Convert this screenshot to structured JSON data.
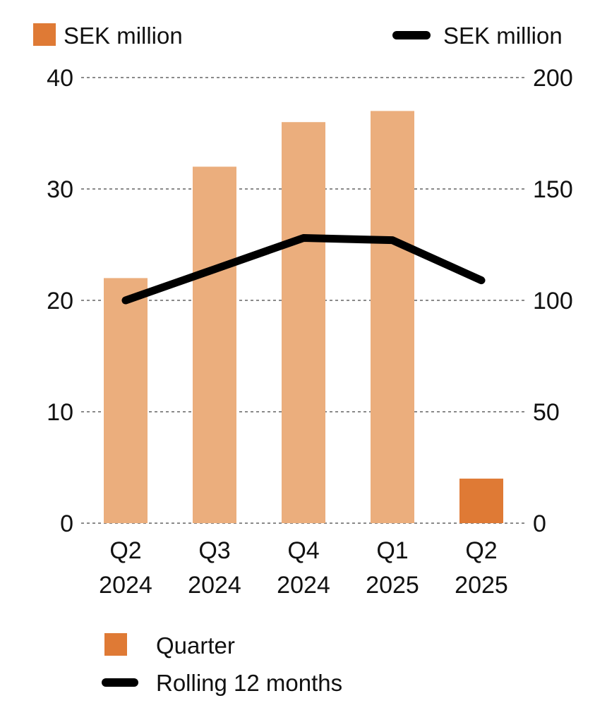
{
  "chart_data": {
    "type": "bar",
    "categories": [
      [
        "Q2",
        "2024"
      ],
      [
        "Q3",
        "2024"
      ],
      [
        "Q4",
        "2024"
      ],
      [
        "Q1",
        "2025"
      ],
      [
        "Q2",
        "2025"
      ]
    ],
    "series": [
      {
        "name": "Quarter",
        "type": "bar",
        "axis": "left",
        "values": [
          22,
          32,
          36,
          37,
          4
        ],
        "colors": [
          "#ebae7d",
          "#ebae7d",
          "#ebae7d",
          "#ebae7d",
          "#df7a35"
        ]
      },
      {
        "name": "Rolling 12 months",
        "type": "line",
        "axis": "right",
        "values": [
          100,
          114,
          128,
          127,
          109
        ],
        "color": "#000000"
      }
    ],
    "y_left": {
      "label": "SEK million",
      "min": 0,
      "max": 40,
      "ticks": [
        "0",
        "10",
        "20",
        "30",
        "40"
      ]
    },
    "y_right": {
      "label": "SEK million",
      "min": 0,
      "max": 200,
      "ticks": [
        "0",
        "50",
        "100",
        "150",
        "200"
      ]
    },
    "grid": "dashed horizontal",
    "legend": "bottom",
    "legend_swatch_color": "#df7a35"
  }
}
